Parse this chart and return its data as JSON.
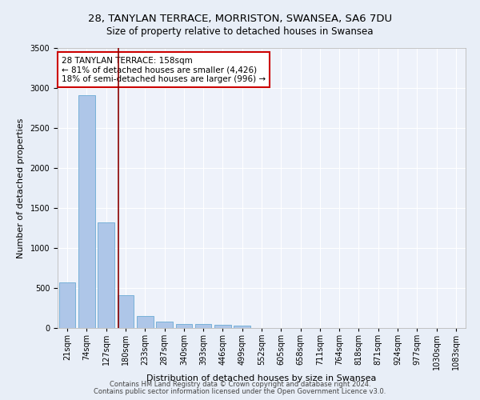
{
  "title_line1": "28, TANYLAN TERRACE, MORRISTON, SWANSEA, SA6 7DU",
  "title_line2": "Size of property relative to detached houses in Swansea",
  "xlabel": "Distribution of detached houses by size in Swansea",
  "ylabel": "Number of detached properties",
  "bar_labels": [
    "21sqm",
    "74sqm",
    "127sqm",
    "180sqm",
    "233sqm",
    "287sqm",
    "340sqm",
    "393sqm",
    "446sqm",
    "499sqm",
    "552sqm",
    "605sqm",
    "658sqm",
    "711sqm",
    "764sqm",
    "818sqm",
    "871sqm",
    "924sqm",
    "977sqm",
    "1030sqm",
    "1083sqm"
  ],
  "bar_heights": [
    570,
    2910,
    1320,
    410,
    155,
    80,
    55,
    50,
    40,
    30,
    0,
    0,
    0,
    0,
    0,
    0,
    0,
    0,
    0,
    0,
    0
  ],
  "bar_color": "#aec6e8",
  "bar_edge_color": "#6aaad4",
  "property_line_x": 2.62,
  "property_line_color": "#8b0000",
  "annotation_text": "28 TANYLAN TERRACE: 158sqm\n← 81% of detached houses are smaller (4,426)\n18% of semi-detached houses are larger (996) →",
  "annotation_box_color": "#ffffff",
  "annotation_box_edge_color": "#cc0000",
  "ylim": [
    0,
    3500
  ],
  "yticks": [
    0,
    500,
    1000,
    1500,
    2000,
    2500,
    3000,
    3500
  ],
  "bg_color": "#e8eef7",
  "plot_bg_color": "#eef2fa",
  "footer_line1": "Contains HM Land Registry data © Crown copyright and database right 2024.",
  "footer_line2": "Contains public sector information licensed under the Open Government Licence v3.0.",
  "title_fontsize": 9.5,
  "subtitle_fontsize": 8.5,
  "axis_label_fontsize": 8,
  "tick_fontsize": 7,
  "annotation_fontsize": 7.5,
  "footer_fontsize": 6
}
